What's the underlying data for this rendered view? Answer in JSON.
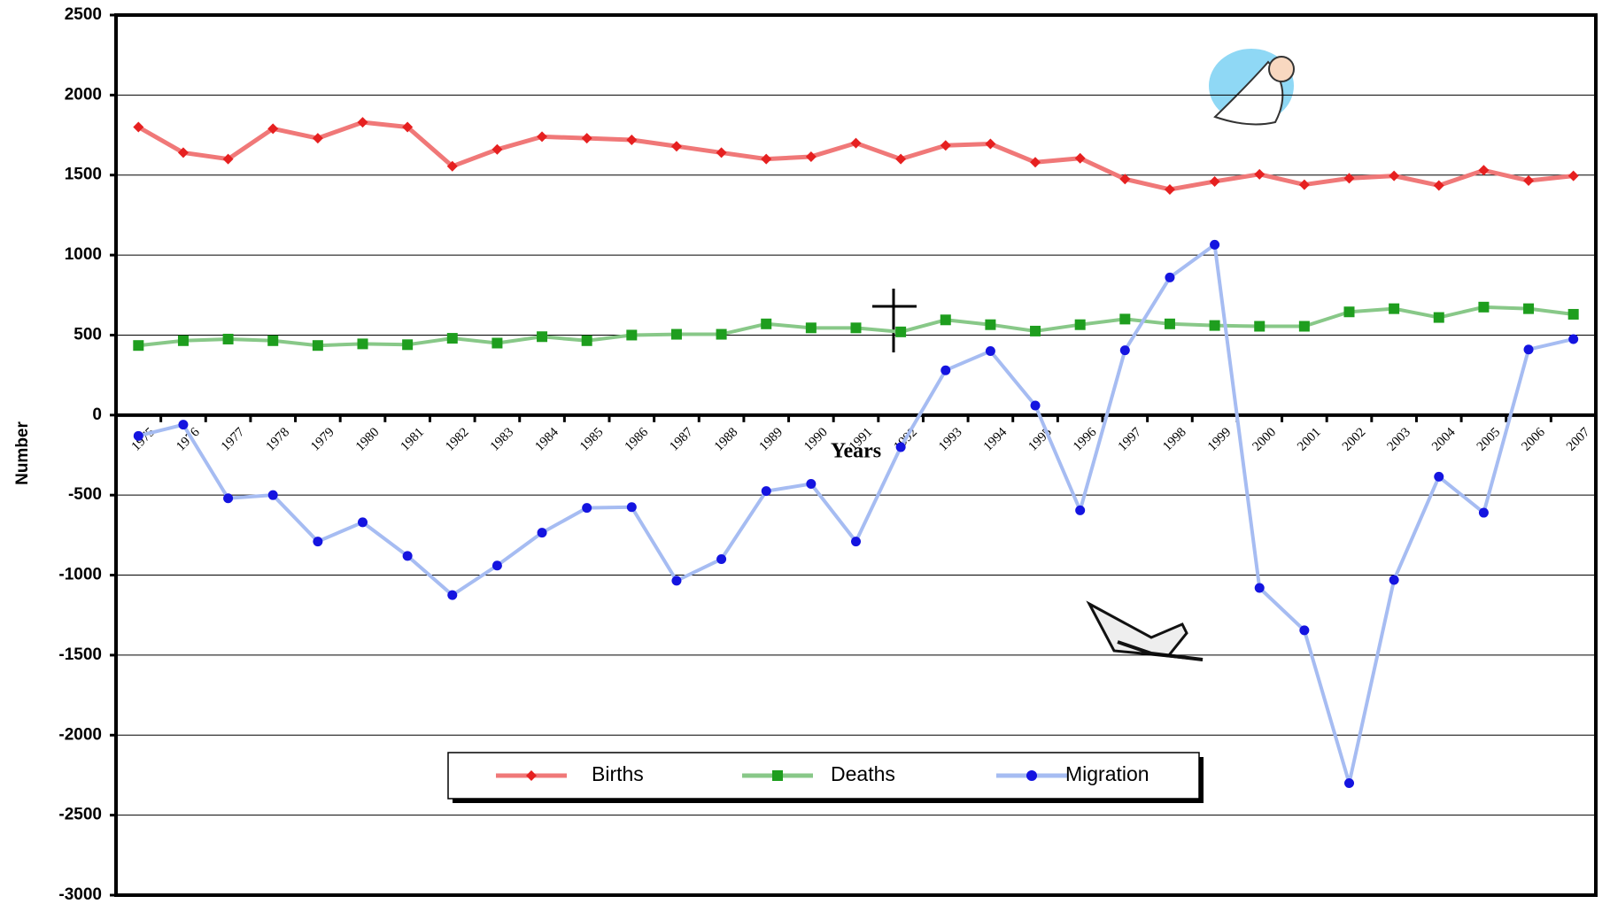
{
  "chart_data": {
    "type": "line",
    "x_label": "Years",
    "y_label": "Number",
    "categories": [
      "1975",
      "1976",
      "1977",
      "1978",
      "1979",
      "1980",
      "1981",
      "1982",
      "1983",
      "1984",
      "1985",
      "1986",
      "1987",
      "1988",
      "1989",
      "1990",
      "1991",
      "1992",
      "1993",
      "1994",
      "1995",
      "1996",
      "1997",
      "1998",
      "1999",
      "2000",
      "2001",
      "2002",
      "2003",
      "2004",
      "2005",
      "2006",
      "2007"
    ],
    "series": [
      {
        "name": "Births",
        "color": "#f07878",
        "marker_color": "#e62020",
        "marker": "diamond",
        "values": [
          1800,
          1640,
          1600,
          1790,
          1730,
          1830,
          1800,
          1555,
          1660,
          1740,
          1730,
          1720,
          1680,
          1640,
          1600,
          1615,
          1700,
          1600,
          1685,
          1695,
          1580,
          1605,
          1475,
          1410,
          1460,
          1505,
          1440,
          1480,
          1495,
          1435,
          1530,
          1465,
          1495
        ]
      },
      {
        "name": "Deaths",
        "color": "#88c888",
        "marker_color": "#1e9e1e",
        "marker": "square",
        "values": [
          435,
          465,
          475,
          465,
          435,
          445,
          440,
          480,
          450,
          490,
          465,
          500,
          505,
          505,
          570,
          545,
          545,
          520,
          595,
          565,
          525,
          565,
          600,
          570,
          560,
          555,
          555,
          645,
          665,
          610,
          675,
          665,
          630
        ]
      },
      {
        "name": "Migration",
        "color": "#a6bcf2",
        "marker_color": "#1414e0",
        "marker": "circle",
        "values": [
          -130,
          -60,
          -520,
          -500,
          -790,
          -670,
          -880,
          -1125,
          -940,
          -735,
          -580,
          -575,
          -1035,
          -900,
          -475,
          -430,
          -790,
          -200,
          280,
          400,
          60,
          -595,
          405,
          860,
          1065,
          -1080,
          -1345,
          -2300,
          -1030,
          -385,
          -610,
          410,
          475
        ]
      }
    ],
    "ylim": [
      -3000,
      2500
    ],
    "yticks": [
      -3000,
      -2500,
      -2000,
      -1500,
      -1000,
      -500,
      0,
      500,
      1000,
      1500,
      2000,
      2500
    ],
    "grid": true
  }
}
